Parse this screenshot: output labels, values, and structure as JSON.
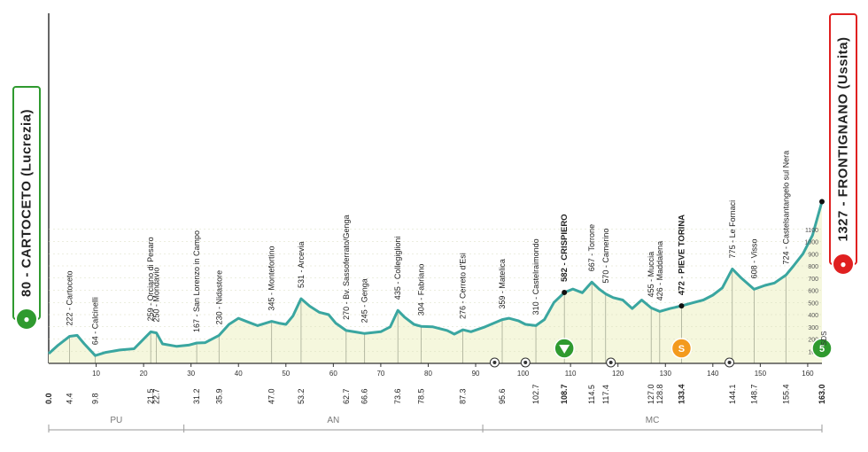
{
  "chart_data": {
    "type": "area",
    "title": "",
    "xlabel": "",
    "ylabel": "",
    "xlim": [
      0,
      163
    ],
    "ylim": [
      0,
      1200
    ],
    "km_ticks": [
      10,
      20,
      30,
      40,
      50,
      60,
      70,
      80,
      90,
      100,
      110,
      120,
      130,
      140,
      150,
      160
    ],
    "alt_ticks": [
      100,
      200,
      300,
      400,
      500,
      600,
      700,
      800,
      900,
      1000,
      1100
    ],
    "profile": [
      [
        0,
        80
      ],
      [
        2,
        150
      ],
      [
        4.4,
        222
      ],
      [
        6,
        230
      ],
      [
        7.5,
        160
      ],
      [
        9.8,
        64
      ],
      [
        12,
        90
      ],
      [
        15,
        110
      ],
      [
        18,
        120
      ],
      [
        21.5,
        259
      ],
      [
        22.7,
        250
      ],
      [
        24,
        160
      ],
      [
        27,
        140
      ],
      [
        29.5,
        150
      ],
      [
        31.2,
        167
      ],
      [
        33,
        170
      ],
      [
        35.9,
        230
      ],
      [
        38,
        320
      ],
      [
        40,
        370
      ],
      [
        42,
        340
      ],
      [
        44,
        310
      ],
      [
        47,
        345
      ],
      [
        48.5,
        330
      ],
      [
        50,
        320
      ],
      [
        51.5,
        390
      ],
      [
        53.2,
        531
      ],
      [
        55,
        470
      ],
      [
        57,
        420
      ],
      [
        59,
        400
      ],
      [
        60.5,
        330
      ],
      [
        62.7,
        270
      ],
      [
        65,
        255
      ],
      [
        66.6,
        245
      ],
      [
        70,
        260
      ],
      [
        72,
        300
      ],
      [
        73.6,
        435
      ],
      [
        75,
        380
      ],
      [
        77,
        320
      ],
      [
        78.5,
        304
      ],
      [
        81,
        300
      ],
      [
        84,
        270
      ],
      [
        85.5,
        240
      ],
      [
        87.3,
        276
      ],
      [
        89,
        260
      ],
      [
        92,
        300
      ],
      [
        95.6,
        359
      ],
      [
        97,
        370
      ],
      [
        99,
        350
      ],
      [
        100.5,
        320
      ],
      [
        102.7,
        310
      ],
      [
        104.5,
        360
      ],
      [
        106.5,
        500
      ],
      [
        108.7,
        582
      ],
      [
        110.5,
        610
      ],
      [
        112.5,
        580
      ],
      [
        114.5,
        667
      ],
      [
        116,
        610
      ],
      [
        117.4,
        570
      ],
      [
        119,
        540
      ],
      [
        121,
        520
      ],
      [
        123,
        450
      ],
      [
        125,
        520
      ],
      [
        127,
        455
      ],
      [
        128.8,
        426
      ],
      [
        131,
        450
      ],
      [
        133.4,
        472
      ],
      [
        136,
        500
      ],
      [
        138,
        520
      ],
      [
        140,
        560
      ],
      [
        142,
        620
      ],
      [
        144.1,
        775
      ],
      [
        146,
        700
      ],
      [
        148.7,
        608
      ],
      [
        151,
        640
      ],
      [
        153,
        660
      ],
      [
        155.4,
        724
      ],
      [
        157,
        800
      ],
      [
        159,
        900
      ],
      [
        161,
        1050
      ],
      [
        163,
        1327
      ]
    ],
    "profile_labels": [
      {
        "km": 4.4,
        "alt": 222,
        "name": "Cartoceto",
        "text": "222 - Cartoceto",
        "bold": false
      },
      {
        "km": 9.8,
        "alt": 64,
        "name": "Calcinelli",
        "text": "64 - Calcinelli",
        "bold": false
      },
      {
        "km": 21.5,
        "alt": 259,
        "name": "Orciano di Pesaro",
        "text": "259 - Orciano di Pesaro",
        "bold": false
      },
      {
        "km": 22.7,
        "alt": 250,
        "name": "Mondavio",
        "text": "250 - Mondavio",
        "bold": false
      },
      {
        "km": 31.2,
        "alt": 167,
        "name": "San Lorenzo in Campo",
        "text": "167 - San Lorenzo in Campo",
        "bold": false
      },
      {
        "km": 35.9,
        "alt": 230,
        "name": "Nidastore",
        "text": "230 - Nidastore",
        "bold": false
      },
      {
        "km": 47.0,
        "alt": 345,
        "name": "Montefortino",
        "text": "345 - Montefortino",
        "bold": false
      },
      {
        "km": 53.2,
        "alt": 531,
        "name": "Arcevia",
        "text": "531 - Arcevia",
        "bold": false
      },
      {
        "km": 62.7,
        "alt": 270,
        "name": "Bv. Sassoferrato/Genga",
        "text": "270 - Bv. Sassoferrato/Genga",
        "bold": false
      },
      {
        "km": 66.6,
        "alt": 245,
        "name": "Genga",
        "text": "245 - Genga",
        "bold": false
      },
      {
        "km": 73.6,
        "alt": 435,
        "name": "Collegiglioni",
        "text": "435 - Collegiglioni",
        "bold": false
      },
      {
        "km": 78.5,
        "alt": 304,
        "name": "Fabriano",
        "text": "304 - Fabriano",
        "bold": false
      },
      {
        "km": 87.3,
        "alt": 276,
        "name": "Cerreto d'Esi",
        "text": "276 - Cerreto d'Esi",
        "bold": false
      },
      {
        "km": 95.6,
        "alt": 359,
        "name": "Matelica",
        "text": "359 - Matelica",
        "bold": false
      },
      {
        "km": 102.7,
        "alt": 310,
        "name": "Castelraimondo",
        "text": "310 - Castelraimondo",
        "bold": false
      },
      {
        "km": 108.7,
        "alt": 582,
        "name": "CRISPIERO",
        "text": "582 - CRISPIERO",
        "bold": true
      },
      {
        "km": 114.5,
        "alt": 667,
        "name": "Torrone",
        "text": "667 - Torrone",
        "bold": false
      },
      {
        "km": 117.4,
        "alt": 570,
        "name": "Camerino",
        "text": "570 - Camerino",
        "bold": false
      },
      {
        "km": 127.0,
        "alt": 455,
        "name": "Muccia",
        "text": "455 - Muccia",
        "bold": false
      },
      {
        "km": 128.8,
        "alt": 426,
        "name": "Maddalena",
        "text": "426 - Maddalena",
        "bold": false
      },
      {
        "km": 133.4,
        "alt": 472,
        "name": "PIEVE TORINA",
        "text": "472 - PIEVE TORINA",
        "bold": true
      },
      {
        "km": 144.1,
        "alt": 775,
        "name": "Le Fornaci",
        "text": "775 - Le Fornaci",
        "bold": false
      },
      {
        "km": 148.7,
        "alt": 608,
        "name": "Visso",
        "text": "608 - Visso",
        "bold": false
      },
      {
        "km": 155.4,
        "alt": 724,
        "name": "Castelsantangelo sul Nera",
        "text": "724 - Castelsantangelo sul Nera",
        "bold": false
      }
    ],
    "km_labels": [
      "0.0",
      "4.4",
      "9.8",
      "21.5",
      "22.7",
      "31.2",
      "35.9",
      "47.0",
      "53.2",
      "62.7",
      "66.6",
      "73.6",
      "78.5",
      "87.3",
      "95.6",
      "102.7",
      "108.7",
      "114.5",
      "117.4",
      "127.0",
      "128.8",
      "133.4",
      "144.1",
      "148.7",
      "155.4",
      "163.0"
    ],
    "provinces": [
      {
        "label": "PU",
        "from": 0,
        "to": 28.5
      },
      {
        "label": "AN",
        "from": 28.5,
        "to": 91.5
      },
      {
        "label": "MC",
        "from": 91.5,
        "to": 163
      }
    ],
    "start": {
      "text": "80 - CARTOCETO (Lucrezia)",
      "km": 0,
      "alt": 80
    },
    "finish": {
      "text": "1327 - FRONTIGNANO (Ussita)",
      "km": 163,
      "alt": 1327
    },
    "markers": [
      {
        "type": "gpm",
        "km": 108.7,
        "color": "#2f9a2f"
      },
      {
        "type": "sprint",
        "km": 133.4,
        "label": "S",
        "color": "#f39a1e"
      },
      {
        "type": "finish-gpm",
        "km": 163,
        "label": "5",
        "color": "#2f9a2f"
      }
    ],
    "finish_marker_label": "SDS",
    "small_icons": [
      {
        "type": "rail",
        "km": 94
      },
      {
        "type": "rail",
        "km": 100.5
      },
      {
        "type": "target",
        "km": 118.5
      },
      {
        "type": "target",
        "km": 143.5
      }
    ],
    "colors": {
      "line": "#3aa6a0",
      "fill": "#f5f7dd",
      "grid": "#d9dcc0",
      "axis": "#333333"
    }
  }
}
